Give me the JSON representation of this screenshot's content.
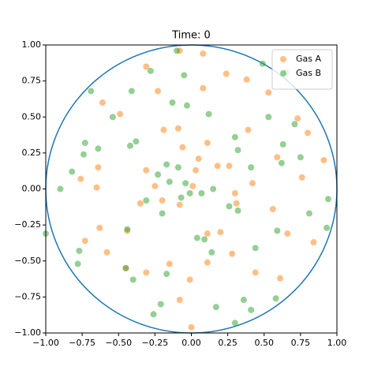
{
  "chart_data": {
    "type": "scatter",
    "title": "Time: 0",
    "xlim": [
      -1,
      1
    ],
    "ylim": [
      -1,
      1
    ],
    "xticks": [
      {
        "value": -1,
        "label": "−1.00"
      },
      {
        "value": -0.75,
        "label": "−0.75"
      },
      {
        "value": -0.5,
        "label": "−0.50"
      },
      {
        "value": -0.25,
        "label": "−0.25"
      },
      {
        "value": 0,
        "label": "0.00"
      },
      {
        "value": 0.25,
        "label": "0.25"
      },
      {
        "value": 0.5,
        "label": "0.50"
      },
      {
        "value": 0.75,
        "label": "0.75"
      },
      {
        "value": 1,
        "label": "1.00"
      }
    ],
    "yticks": [
      {
        "value": -1,
        "label": "−1.00"
      },
      {
        "value": -0.75,
        "label": "−0.75"
      },
      {
        "value": -0.5,
        "label": "−0.50"
      },
      {
        "value": -0.25,
        "label": "−0.25"
      },
      {
        "value": 0,
        "label": "0.00"
      },
      {
        "value": 0.25,
        "label": "0.25"
      },
      {
        "value": 0.5,
        "label": "0.50"
      },
      {
        "value": 0.75,
        "label": "0.75"
      },
      {
        "value": 1,
        "label": "1.00"
      }
    ],
    "legend": "upper right",
    "series": [
      {
        "name": "Gas A",
        "color": "#ff7f0e",
        "x": [
          -0.31,
          -0.08,
          0.08,
          -0.61,
          -0.49,
          -0.23,
          0.08,
          0.24,
          0.38,
          0.53,
          0.73,
          0.8,
          0.39,
          0.59,
          0.91,
          0.76,
          0.42,
          0.3,
          0.26,
          0.03,
          -0.06,
          -0.19,
          -0.31,
          -0.35,
          -0.44,
          -0.63,
          -0.73,
          -0.58,
          -0.45,
          -0.31,
          -0.15,
          -0.01,
          0.0,
          -0.08,
          0.11,
          0.2,
          0.28,
          0.44,
          0.61,
          0.84,
          0.66,
          0.56,
          -0.08,
          -0.2,
          0.01,
          -0.25,
          -0.65,
          -0.76,
          0.18,
          0.11,
          0.31,
          -0.64,
          0.11,
          0.05,
          -0.09
        ],
        "values": [
          0.85,
          0.96,
          0.94,
          0.6,
          0.52,
          0.68,
          0.7,
          0.8,
          0.76,
          0.67,
          0.49,
          0.39,
          0.41,
          0.22,
          0.2,
          0.08,
          0.04,
          -0.03,
          0.16,
          0.13,
          0.29,
          0.41,
          0.13,
          -0.1,
          -0.29,
          -0.27,
          -0.36,
          -0.44,
          -0.55,
          -0.58,
          -0.52,
          -0.63,
          -0.96,
          -0.77,
          -0.51,
          -0.3,
          -0.45,
          -0.58,
          -0.62,
          -0.37,
          -0.31,
          -0.14,
          -0.11,
          -0.08,
          0.02,
          0.02,
          0.01,
          0.07,
          0.16,
          -0.31,
          -0.1,
          0.15,
          0.32,
          0.21,
          0.42
        ]
      },
      {
        "name": "Gas B",
        "color": "#2ca02c",
        "x": [
          -0.1,
          -0.28,
          -0.69,
          -0.54,
          -0.41,
          -0.05,
          -0.13,
          -0.03,
          0.12,
          0.49,
          0.65,
          0.53,
          0.71,
          0.63,
          0.3,
          0.32,
          0.41,
          0.75,
          0.62,
          0.81,
          0.94,
          0.93,
          0.59,
          0.32,
          0.26,
          0.15,
          0.07,
          -0.04,
          -0.01,
          -0.07,
          -0.15,
          -0.17,
          -0.09,
          -0.23,
          -0.2,
          -0.31,
          -0.42,
          -0.38,
          -0.73,
          -0.74,
          -0.64,
          -0.82,
          -0.9,
          -1.0,
          -0.77,
          -0.78,
          -0.44,
          -0.45,
          -0.4,
          -0.17,
          -0.26,
          -0.21,
          0.04,
          0.09,
          0.14,
          0.44,
          0.17,
          0.36,
          0.41,
          0.3,
          0.58
        ],
        "values": [
          0.96,
          0.82,
          0.68,
          0.5,
          0.68,
          0.79,
          0.6,
          0.58,
          0.52,
          0.87,
          0.81,
          0.5,
          0.45,
          0.31,
          0.36,
          0.27,
          0.15,
          0.22,
          0.18,
          -0.17,
          -0.07,
          -0.27,
          -0.29,
          -0.15,
          -0.12,
          0.0,
          -0.03,
          0.04,
          -0.03,
          -0.06,
          0.05,
          0.17,
          0.15,
          0.1,
          -0.17,
          -0.08,
          0.3,
          0.33,
          0.32,
          0.24,
          0.28,
          0.12,
          0.0,
          -0.31,
          -0.43,
          -0.52,
          -0.28,
          -0.55,
          -0.63,
          -0.59,
          -0.87,
          -0.8,
          -0.34,
          -0.35,
          -0.44,
          -0.41,
          -0.82,
          -0.77,
          -0.84,
          -0.93,
          -0.76
        ]
      }
    ]
  }
}
